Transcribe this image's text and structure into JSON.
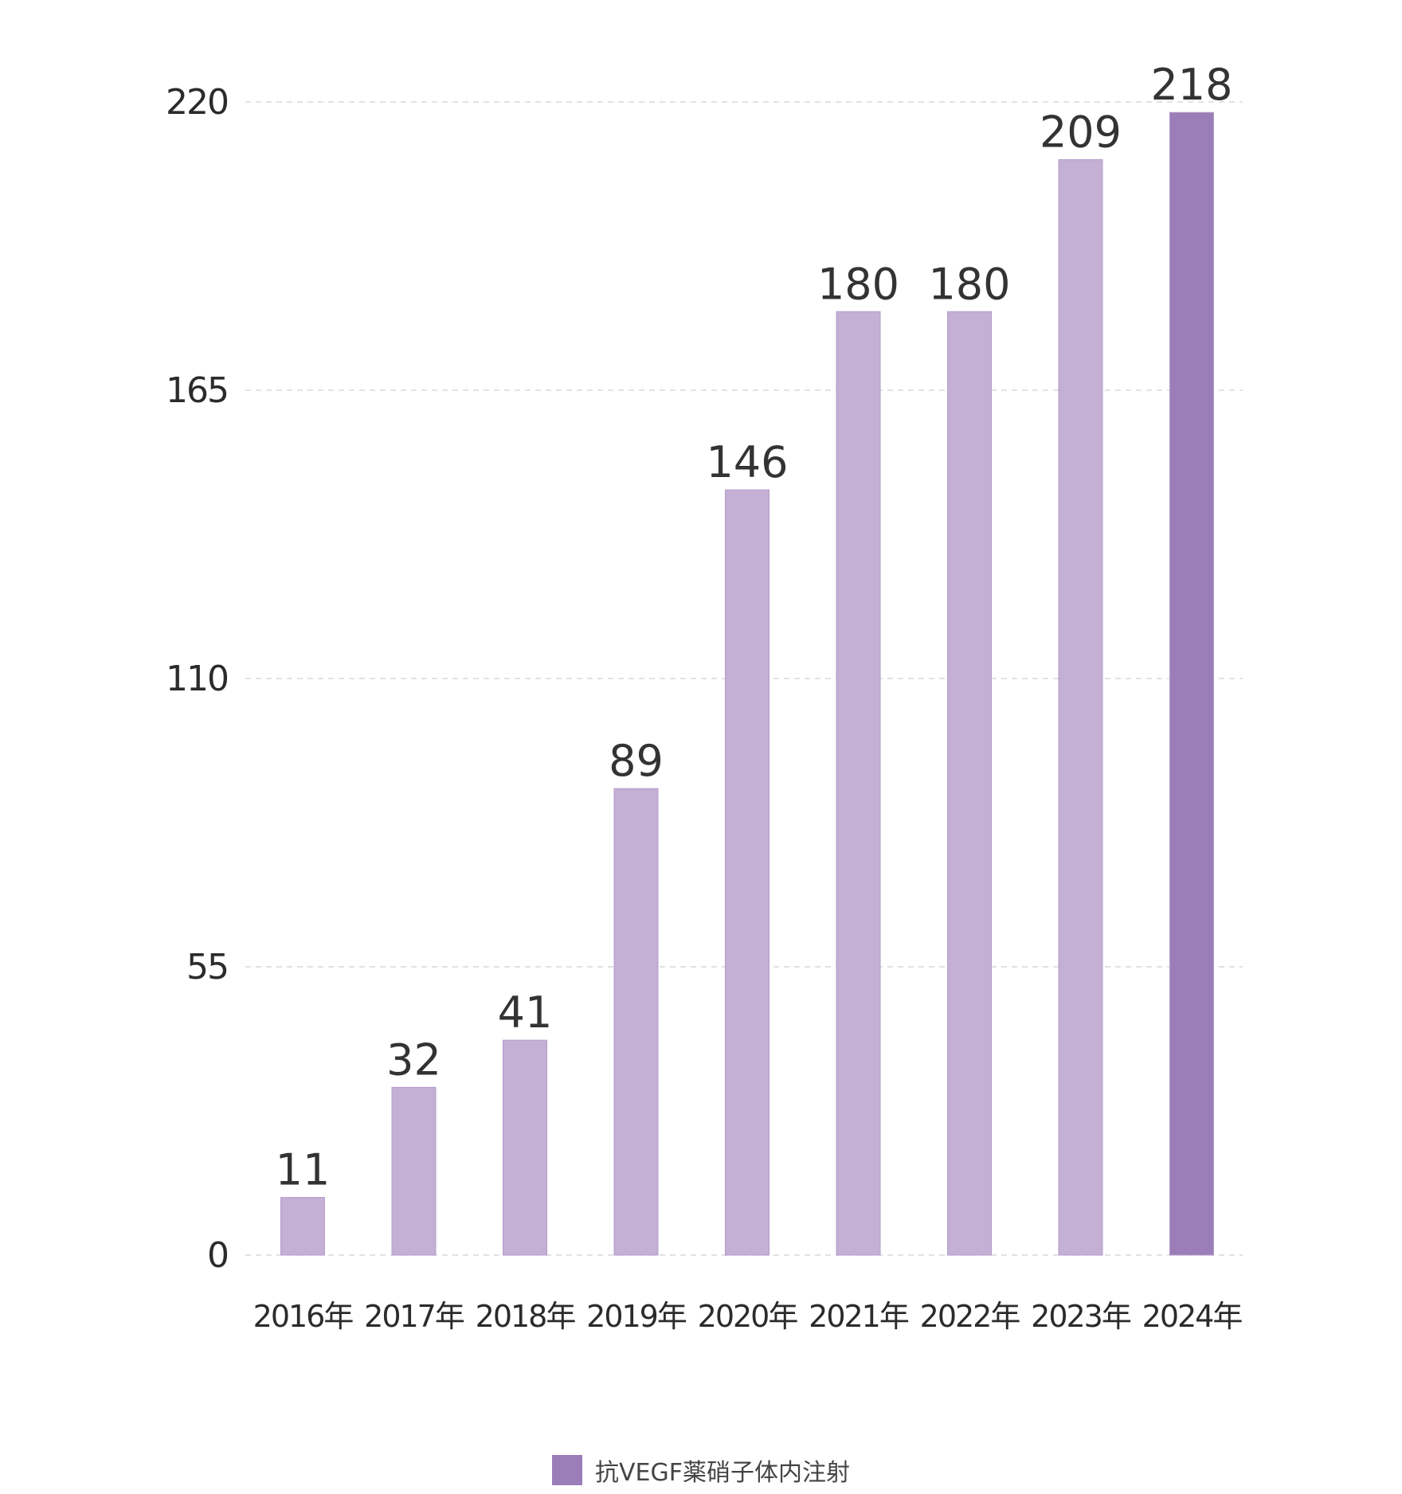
{
  "chart_data": {
    "type": "bar",
    "categories": [
      "2016年",
      "2017年",
      "2018年",
      "2019年",
      "2020年",
      "2021年",
      "2022年",
      "2023年",
      "2024年"
    ],
    "series": [
      {
        "name": "抗VEGF薬硝子体内注射",
        "values": [
          11,
          32,
          41,
          89,
          146,
          180,
          180,
          209,
          218
        ]
      }
    ],
    "yticks": [
      "0",
      "55",
      "110",
      "165",
      "220"
    ],
    "ylim": [
      0,
      220
    ],
    "grid": true,
    "legend_position": "bottom",
    "bar_color": "#c3b0d4",
    "highlight_color": "#9b7db7",
    "highlight_index": 8
  }
}
